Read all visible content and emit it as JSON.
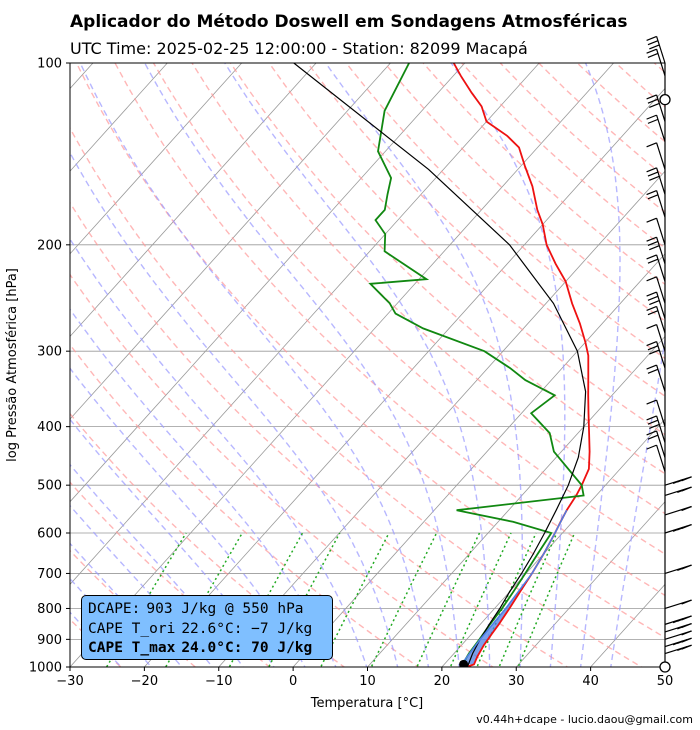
{
  "header": {
    "title": "Aplicador do Método Doswell em Sondagens Atmosféricas",
    "subtitle": "UTC Time: 2025-02-25 12:00:00 - Station: 82099 Macapá"
  },
  "footer": "v0.44h+dcape  -  lucio.daou@gmail.com",
  "infobox": {
    "dcape_label": "DCAPE:",
    "dcape_value": "903 J/kg @ 550 hPa",
    "cape_ori_label": "CAPE T_ori",
    "cape_ori_value": "22.6°C:  −7 J/kg",
    "cape_max_label": "CAPE T_max",
    "cape_max_value": "24.0°C: 70 J/kg"
  },
  "colors": {
    "temperature": "#ee1111",
    "dewpoint": "#118811",
    "parcel": "#000000",
    "dcape_fill": "#4d7fe6",
    "dry_adiabat": "#ff9999",
    "moist_adiabat": "#9999ff",
    "mixing_ratio": "#22aa22",
    "isotherm": "#999999",
    "infobox_bg": "#7fbfff"
  },
  "chart_data": {
    "type": "skew-t",
    "xlabel": "Temperatura [°C]",
    "ylabel": "log Pressão Atmosférica [hPa]",
    "xlim": [
      -30,
      50
    ],
    "ylim": [
      1000,
      100
    ],
    "x_ticks": [
      -30,
      -20,
      -10,
      0,
      10,
      20,
      30,
      40,
      50
    ],
    "y_ticks": [
      100,
      200,
      300,
      400,
      500,
      600,
      700,
      800,
      900,
      1000
    ],
    "y_scale": "log",
    "grid": true,
    "series": [
      {
        "key": "temperature",
        "points": [
          [
            1004,
            23.0
          ],
          [
            990,
            24.0
          ],
          [
            960,
            23.5
          ],
          [
            920,
            23.0
          ],
          [
            880,
            22.7
          ],
          [
            850,
            22.5
          ],
          [
            800,
            22.0
          ],
          [
            750,
            21.4
          ],
          [
            700,
            20.8
          ],
          [
            650,
            20.0
          ],
          [
            600,
            19.0
          ],
          [
            575,
            18.4
          ],
          [
            550,
            17.8
          ],
          [
            520,
            17.3
          ],
          [
            500,
            16.8
          ],
          [
            470,
            15.8
          ],
          [
            440,
            13.8
          ],
          [
            410,
            11.5
          ],
          [
            380,
            9.0
          ],
          [
            355,
            6.8
          ],
          [
            330,
            4.5
          ],
          [
            305,
            2.0
          ],
          [
            290,
            0.0
          ],
          [
            270,
            -3.0
          ],
          [
            250,
            -6.5
          ],
          [
            230,
            -10.0
          ],
          [
            215,
            -13.5
          ],
          [
            200,
            -17.0
          ],
          [
            185,
            -20.0
          ],
          [
            175,
            -22.5
          ],
          [
            160,
            -26.0
          ],
          [
            148,
            -29.5
          ],
          [
            138,
            -32.5
          ],
          [
            132,
            -35.5
          ],
          [
            125,
            -40.0
          ],
          [
            118,
            -42.5
          ],
          [
            112,
            -45.5
          ],
          [
            105,
            -49.0
          ],
          [
            100,
            -51.5
          ]
        ]
      },
      {
        "key": "dewpoint",
        "points": [
          [
            1004,
            22.6
          ],
          [
            950,
            22.0
          ],
          [
            900,
            21.7
          ],
          [
            850,
            21.3
          ],
          [
            800,
            21.0
          ],
          [
            750,
            20.5
          ],
          [
            700,
            19.9
          ],
          [
            650,
            19.2
          ],
          [
            600,
            18.5
          ],
          [
            575,
            12.0
          ],
          [
            550,
            3.0
          ],
          [
            520,
            18.3
          ],
          [
            500,
            16.8
          ],
          [
            440,
            9.0
          ],
          [
            410,
            6.2
          ],
          [
            380,
            1.3
          ],
          [
            355,
            2.3
          ],
          [
            335,
            -3.5
          ],
          [
            320,
            -7.0
          ],
          [
            300,
            -12.5
          ],
          [
            275,
            -23.5
          ],
          [
            260,
            -29.0
          ],
          [
            250,
            -31.0
          ],
          [
            232,
            -36.0
          ],
          [
            228,
            -29.0
          ],
          [
            205,
            -38.0
          ],
          [
            192,
            -40.0
          ],
          [
            182,
            -43.0
          ],
          [
            175,
            -43.0
          ],
          [
            165,
            -44.5
          ],
          [
            155,
            -46.0
          ],
          [
            140,
            -51.0
          ],
          [
            120,
            -55.0
          ],
          [
            100,
            -57.5
          ]
        ]
      },
      {
        "key": "parcel",
        "points": [
          [
            1004,
            23.5
          ],
          [
            950,
            22.5
          ],
          [
            900,
            21.8
          ],
          [
            850,
            21.2
          ],
          [
            800,
            20.7
          ],
          [
            750,
            20.0
          ],
          [
            700,
            19.4
          ],
          [
            650,
            18.6
          ],
          [
            600,
            17.6
          ],
          [
            550,
            16.4
          ],
          [
            500,
            15.0
          ],
          [
            450,
            13.0
          ],
          [
            400,
            10.0
          ],
          [
            350,
            6.0
          ],
          [
            300,
            0.0
          ],
          [
            250,
            -9.0
          ],
          [
            200,
            -22.0
          ],
          [
            150,
            -42.0
          ],
          [
            100,
            -73.0
          ]
        ]
      },
      {
        "key": "dcape_descent",
        "points": [
          [
            550,
            17.8
          ],
          [
            600,
            19.0
          ],
          [
            650,
            20.0
          ],
          [
            700,
            20.8
          ],
          [
            800,
            21.5
          ],
          [
            900,
            21.8
          ],
          [
            990,
            22.3
          ]
        ]
      }
    ],
    "surface_parcel": {
      "pressure": 990,
      "temperature": 22.6
    },
    "wind_barb_levels": [
      1000,
      950,
      925,
      900,
      875,
      850,
      800,
      700,
      600,
      560,
      520,
      500,
      475,
      450,
      425,
      400,
      350,
      320,
      300,
      280,
      265,
      250,
      230,
      215,
      200,
      180,
      165,
      150,
      135,
      125,
      115,
      105,
      100
    ],
    "calm_levels": [
      1000,
      115
    ]
  }
}
